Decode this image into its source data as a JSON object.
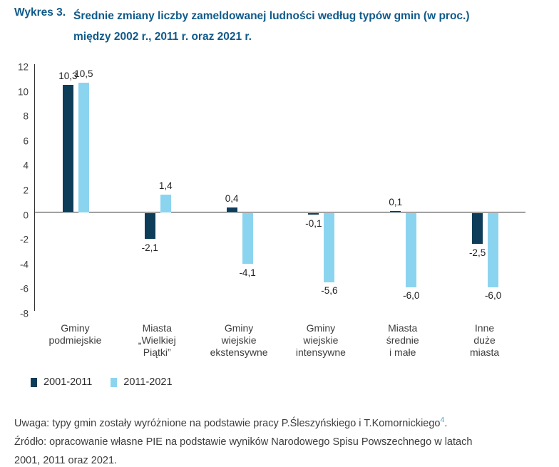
{
  "title": {
    "prefix": "Wykres 3.",
    "lines": [
      "Średnie zmiany liczby zameldowanej ludności według typów gmin (w proc.)",
      "między 2002 r., 2011 r. oraz 2021 r."
    ],
    "color": "#0f5a8a"
  },
  "chart_data": {
    "type": "bar",
    "categories": [
      [
        "Gminy",
        "podmiejskie"
      ],
      [
        "Miasta",
        "„Wielkiej",
        "Piątki”"
      ],
      [
        "Gminy",
        "wiejskie",
        "ekstensywne"
      ],
      [
        "Gminy",
        "wiejskie",
        "intensywne"
      ],
      [
        "Miasta",
        "średnie",
        "i małe"
      ],
      [
        "Inne",
        "duże",
        "miasta"
      ]
    ],
    "series": [
      {
        "name": "2001-2011",
        "color": "#0e3d59",
        "values": [
          10.3,
          -2.1,
          0.4,
          -0.1,
          0.1,
          -2.5
        ],
        "labels": [
          "10,3",
          "-2,1",
          "0,4",
          "-0,1",
          "0,1",
          "-2,5"
        ]
      },
      {
        "name": "2011-2021",
        "color": "#8bd4f0",
        "values": [
          10.5,
          1.4,
          -4.1,
          -5.6,
          -6.0,
          -6.0
        ],
        "labels": [
          "10,5",
          "1,4",
          "-4,1",
          "-5,6",
          "-6,0",
          "-6,0"
        ]
      }
    ],
    "y_axis": {
      "min": -8,
      "max": 12,
      "ticks": [
        12,
        10,
        8,
        6,
        4,
        2,
        0,
        -2,
        -4,
        -6,
        -8
      ]
    },
    "grid": false,
    "legend_position": "bottom-left",
    "title": "Średnie zmiany liczby zameldowanej ludności według typów gmin (w proc.) między 2002 r., 2011 r. oraz 2021 r.",
    "xlabel": "",
    "ylabel": ""
  },
  "legend": [
    {
      "label": "2001-2011",
      "color": "#0e3d59"
    },
    {
      "label": "2011-2021",
      "color": "#8bd4f0"
    }
  ],
  "notes": {
    "uwaga_text": "Uwaga: typy gmin zostały wyróżnione na podstawie pracy P.Śleszyńskiego i T.Komornickiego",
    "uwaga_sup": "4",
    "uwaga_end": ".",
    "zrodlo_line1": "Źródło: opracowanie własne PIE na podstawie wyników Narodowego Spisu Powszechnego w latach",
    "zrodlo_line2": "2001, 2011 oraz 2021."
  }
}
